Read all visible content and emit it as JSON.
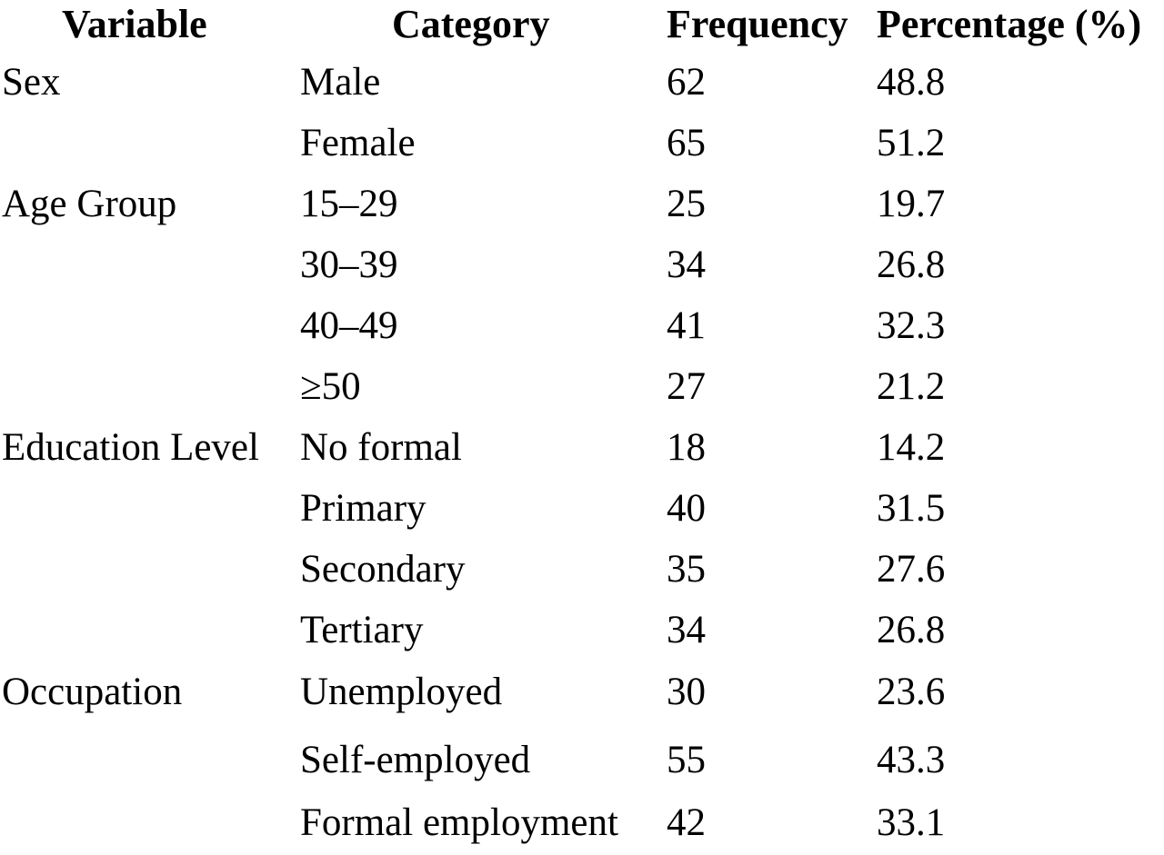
{
  "table": {
    "headers": {
      "variable": "Variable",
      "category": "Category",
      "frequency": "Frequency",
      "percentage": "Percentage (%)"
    },
    "rows": [
      {
        "variable": "Sex",
        "category": "Male",
        "frequency": "62",
        "percentage": "48.8"
      },
      {
        "variable": "",
        "category": "Female",
        "frequency": "65",
        "percentage": "51.2"
      },
      {
        "variable": "Age Group",
        "category": "15–29",
        "frequency": "25",
        "percentage": "19.7"
      },
      {
        "variable": "",
        "category": "30–39",
        "frequency": "34",
        "percentage": "26.8"
      },
      {
        "variable": "",
        "category": "40–49",
        "frequency": "41",
        "percentage": "32.3"
      },
      {
        "variable": "",
        "category": "≥50",
        "frequency": "27",
        "percentage": "21.2"
      },
      {
        "variable": "Education Level",
        "category": "No formal",
        "frequency": "18",
        "percentage": "14.2"
      },
      {
        "variable": "",
        "category": "Primary",
        "frequency": "40",
        "percentage": "31.5"
      },
      {
        "variable": "",
        "category": "Secondary",
        "frequency": "35",
        "percentage": "27.6"
      },
      {
        "variable": "",
        "category": "Tertiary",
        "frequency": "34",
        "percentage": "26.8"
      },
      {
        "variable": "Occupation",
        "category": "Unemployed",
        "frequency": "30",
        "percentage": "23.6"
      },
      {
        "variable": "",
        "category": "Self-employed",
        "frequency": "55",
        "percentage": "43.3"
      },
      {
        "variable": "",
        "category": "Formal employment",
        "frequency": "42",
        "percentage": "33.1"
      }
    ]
  }
}
